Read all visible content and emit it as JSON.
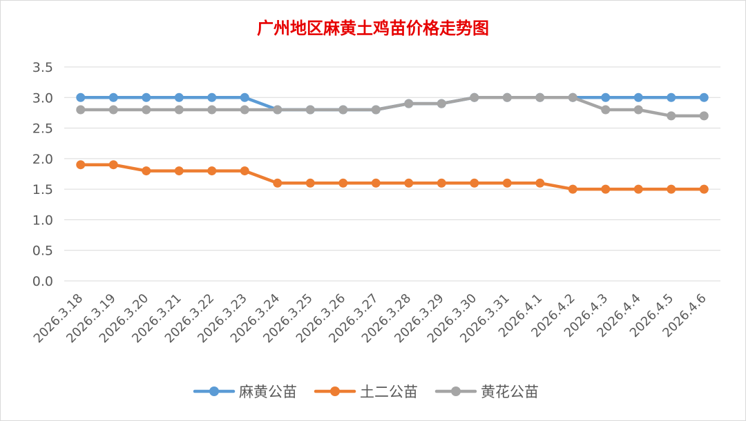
{
  "chart_data": {
    "type": "line",
    "title": "广州地区麻黄土鸡苗价格走势图",
    "xlabel": "",
    "ylabel": "",
    "ylim": [
      0,
      3.5
    ],
    "yticks": [
      "0.0",
      "0.5",
      "1.0",
      "1.5",
      "2.0",
      "2.5",
      "3.0",
      "3.5"
    ],
    "grid": true,
    "legend_position": "bottom",
    "categories": [
      "2026.3.18",
      "2026.3.19",
      "2026.3.20",
      "2026.3.21",
      "2026.3.22",
      "2026.3.23",
      "2026.3.24",
      "2026.3.25",
      "2026.3.26",
      "2026.3.27",
      "2026.3.28",
      "2026.3.29",
      "2026.3.30",
      "2026.3.31",
      "2026.4.1",
      "2026.4.2",
      "2026.4.3",
      "2026.4.4",
      "2026.4.5",
      "2026.4.6"
    ],
    "series": [
      {
        "name": "麻黄公苗",
        "color": "#5b9bd5",
        "values": [
          3.0,
          3.0,
          3.0,
          3.0,
          3.0,
          3.0,
          2.8,
          2.8,
          2.8,
          2.8,
          2.9,
          2.9,
          3.0,
          3.0,
          3.0,
          3.0,
          3.0,
          3.0,
          3.0,
          3.0
        ]
      },
      {
        "name": "土二公苗",
        "color": "#ed7d31",
        "values": [
          1.9,
          1.9,
          1.8,
          1.8,
          1.8,
          1.8,
          1.6,
          1.6,
          1.6,
          1.6,
          1.6,
          1.6,
          1.6,
          1.6,
          1.6,
          1.5,
          1.5,
          1.5,
          1.5,
          1.5
        ]
      },
      {
        "name": "黄花公苗",
        "color": "#a5a5a5",
        "values": [
          2.8,
          2.8,
          2.8,
          2.8,
          2.8,
          2.8,
          2.8,
          2.8,
          2.8,
          2.8,
          2.9,
          2.9,
          3.0,
          3.0,
          3.0,
          3.0,
          2.8,
          2.8,
          2.7,
          2.7
        ]
      }
    ]
  }
}
